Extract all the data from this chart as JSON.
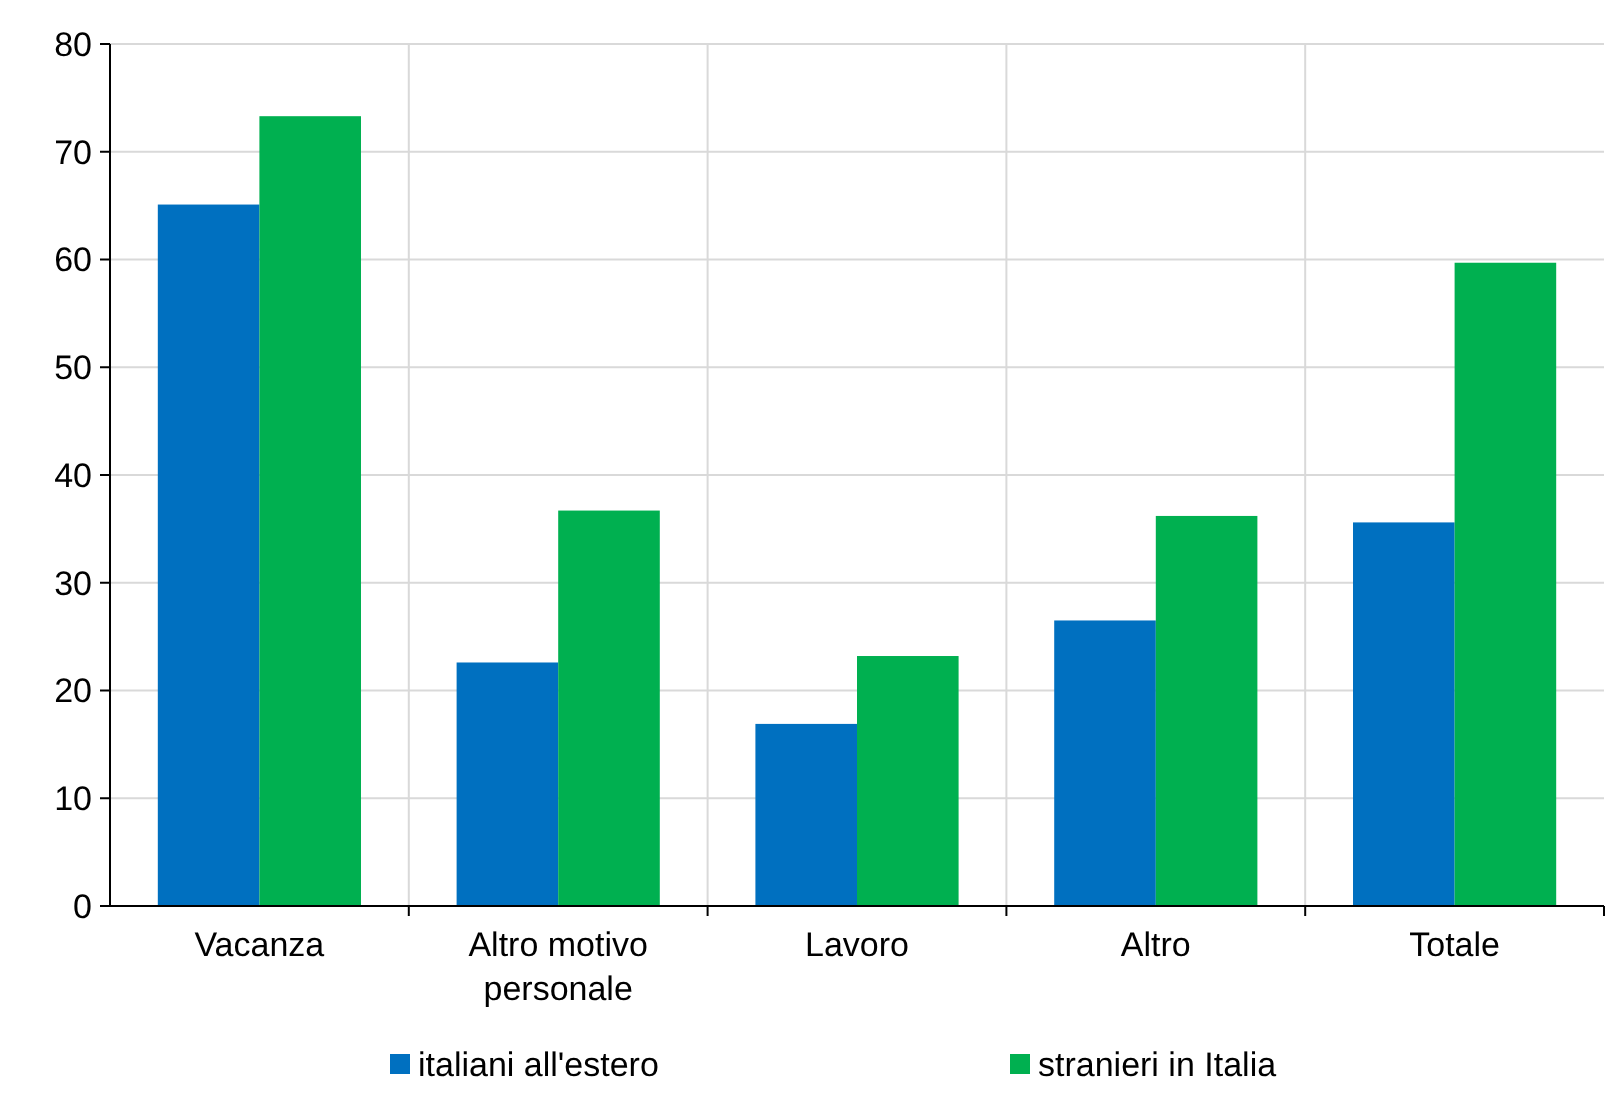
{
  "chart_data": {
    "type": "bar",
    "categories": [
      "Vacanza",
      "Altro motivo personale",
      "Lavoro",
      "Altro",
      "Totale"
    ],
    "series": [
      {
        "name": "italiani all'estero",
        "color": "#0070c0",
        "values": [
          65.1,
          22.6,
          16.9,
          26.5,
          35.6
        ]
      },
      {
        "name": "stranieri in Italia",
        "color": "#00b050",
        "values": [
          73.3,
          36.7,
          23.2,
          36.2,
          59.7
        ]
      }
    ],
    "ylim": [
      0,
      80
    ],
    "yticks": [
      0,
      10,
      20,
      30,
      40,
      50,
      60,
      70,
      80
    ],
    "grid": true,
    "legend": "bottom"
  }
}
